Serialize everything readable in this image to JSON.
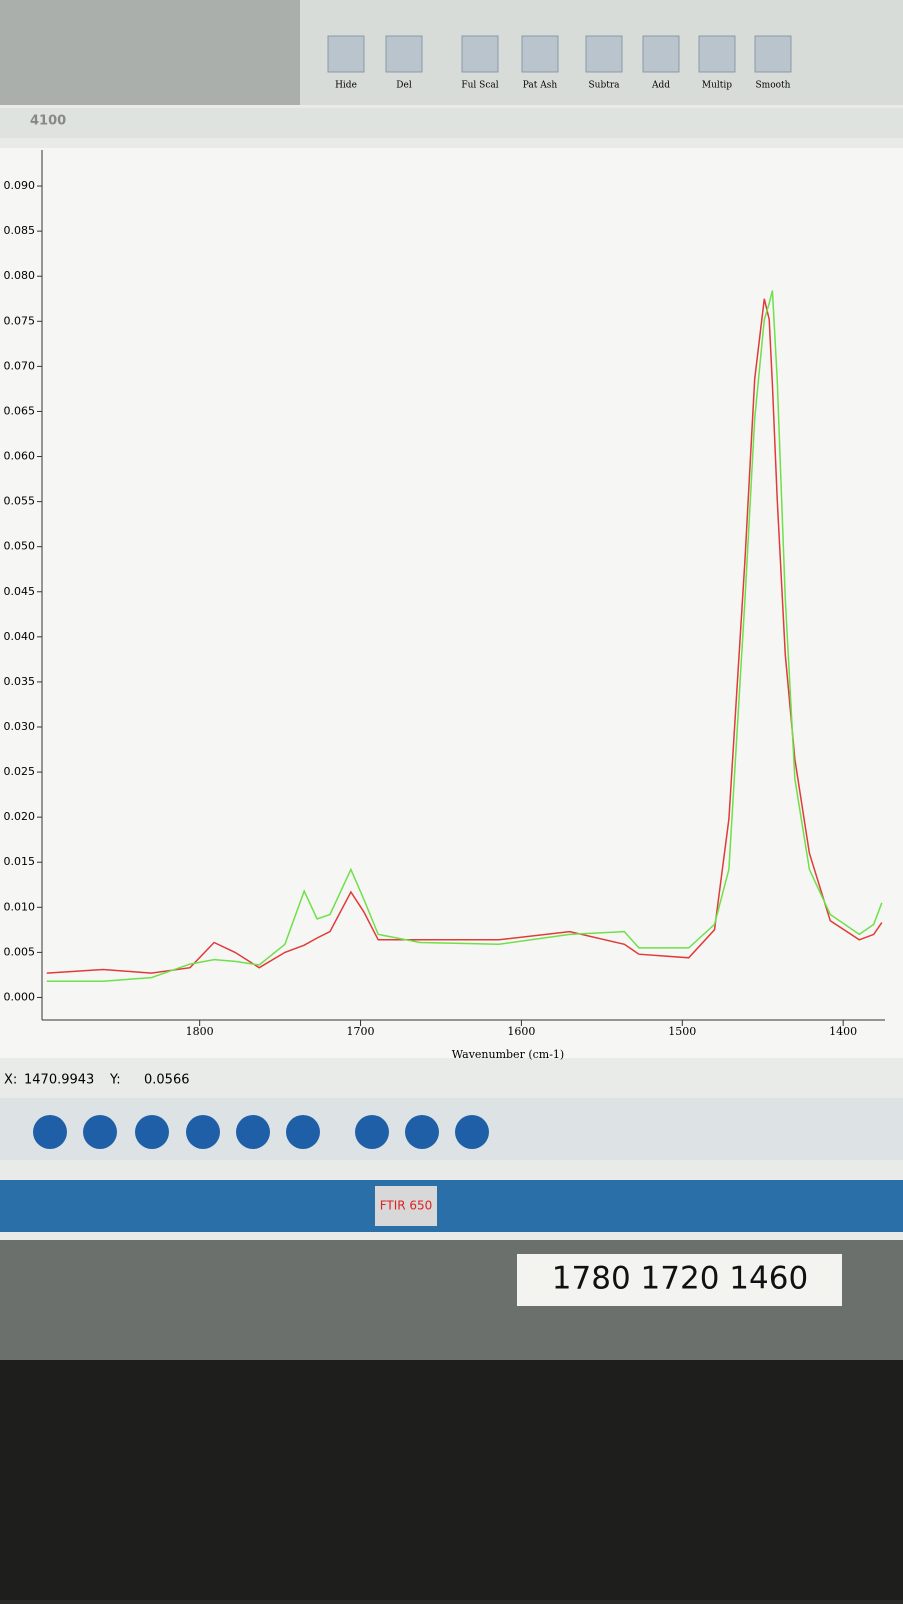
{
  "toolbar": {
    "buttons": [
      "Hide",
      "Del",
      "Ful Scal",
      "Pat Ash",
      "Subtra",
      "Add",
      "Multip",
      "Smooth"
    ]
  },
  "window": {
    "title": "4100"
  },
  "chart_data": {
    "type": "line",
    "x_label": "Wavenumber (cm-1)",
    "x": [
      1895,
      1860,
      1830,
      1806,
      1791,
      1778,
      1763,
      1747,
      1735,
      1727,
      1719,
      1706,
      1698,
      1689,
      1663,
      1614,
      1570,
      1536,
      1527,
      1496,
      1480,
      1471,
      1461,
      1455,
      1449,
      1446,
      1444,
      1441,
      1436,
      1430,
      1421,
      1408,
      1390,
      1381,
      1376
    ],
    "series": [
      {
        "color": "#e03a3a",
        "values": [
          0.0027,
          0.0031,
          0.0027,
          0.0033,
          0.0061,
          0.005,
          0.0033,
          0.005,
          0.0058,
          0.0066,
          0.0073,
          0.0117,
          0.0095,
          0.0064,
          0.0064,
          0.0064,
          0.0073,
          0.0059,
          0.0048,
          0.0044,
          0.0075,
          0.0198,
          0.0486,
          0.0686,
          0.0775,
          0.0752,
          0.068,
          0.0553,
          0.038,
          0.0264,
          0.016,
          0.0085,
          0.0064,
          0.007,
          0.0083
        ]
      },
      {
        "color": "#6ee04a",
        "values": [
          0.0018,
          0.0018,
          0.0022,
          0.0037,
          0.0042,
          0.004,
          0.0036,
          0.0059,
          0.0118,
          0.0087,
          0.0092,
          0.0142,
          0.0109,
          0.007,
          0.0061,
          0.0059,
          0.007,
          0.0073,
          0.0055,
          0.0055,
          0.0081,
          0.0142,
          0.0442,
          0.0642,
          0.0752,
          0.077,
          0.0784,
          0.0686,
          0.0442,
          0.0242,
          0.0142,
          0.0092,
          0.007,
          0.0081,
          0.0105
        ]
      }
    ],
    "xlim": [
      1898,
      1374
    ],
    "xticks": [
      1800,
      1700,
      1600,
      1500,
      1400
    ],
    "ylim": [
      -0.0025,
      0.094
    ],
    "yticks": [
      {
        "value": 0,
        "label": "0.000"
      },
      0.005,
      {
        "value": 0.01,
        "label": "0.010"
      },
      0.015,
      {
        "value": 0.02,
        "label": "0.020"
      },
      0.025,
      {
        "value": 0.03,
        "label": "0.030"
      },
      0.035,
      {
        "value": 0.04,
        "label": "0.040"
      },
      0.045,
      {
        "value": 0.05,
        "label": "0.050"
      },
      0.055,
      {
        "value": 0.06,
        "label": "0.060"
      },
      0.065,
      {
        "value": 0.07,
        "label": "0.070"
      },
      0.075,
      {
        "value": 0.08,
        "label": "0.080"
      },
      0.085,
      {
        "value": 0.09,
        "label": "0.090"
      }
    ]
  },
  "status": {
    "x_label": "X:",
    "x_value": "1470.9943",
    "y_label": "Y:",
    "y_value": "0.0566"
  },
  "taskbar": {
    "app": "FTIR 650"
  },
  "sticky_note": "1780 1720 1460"
}
